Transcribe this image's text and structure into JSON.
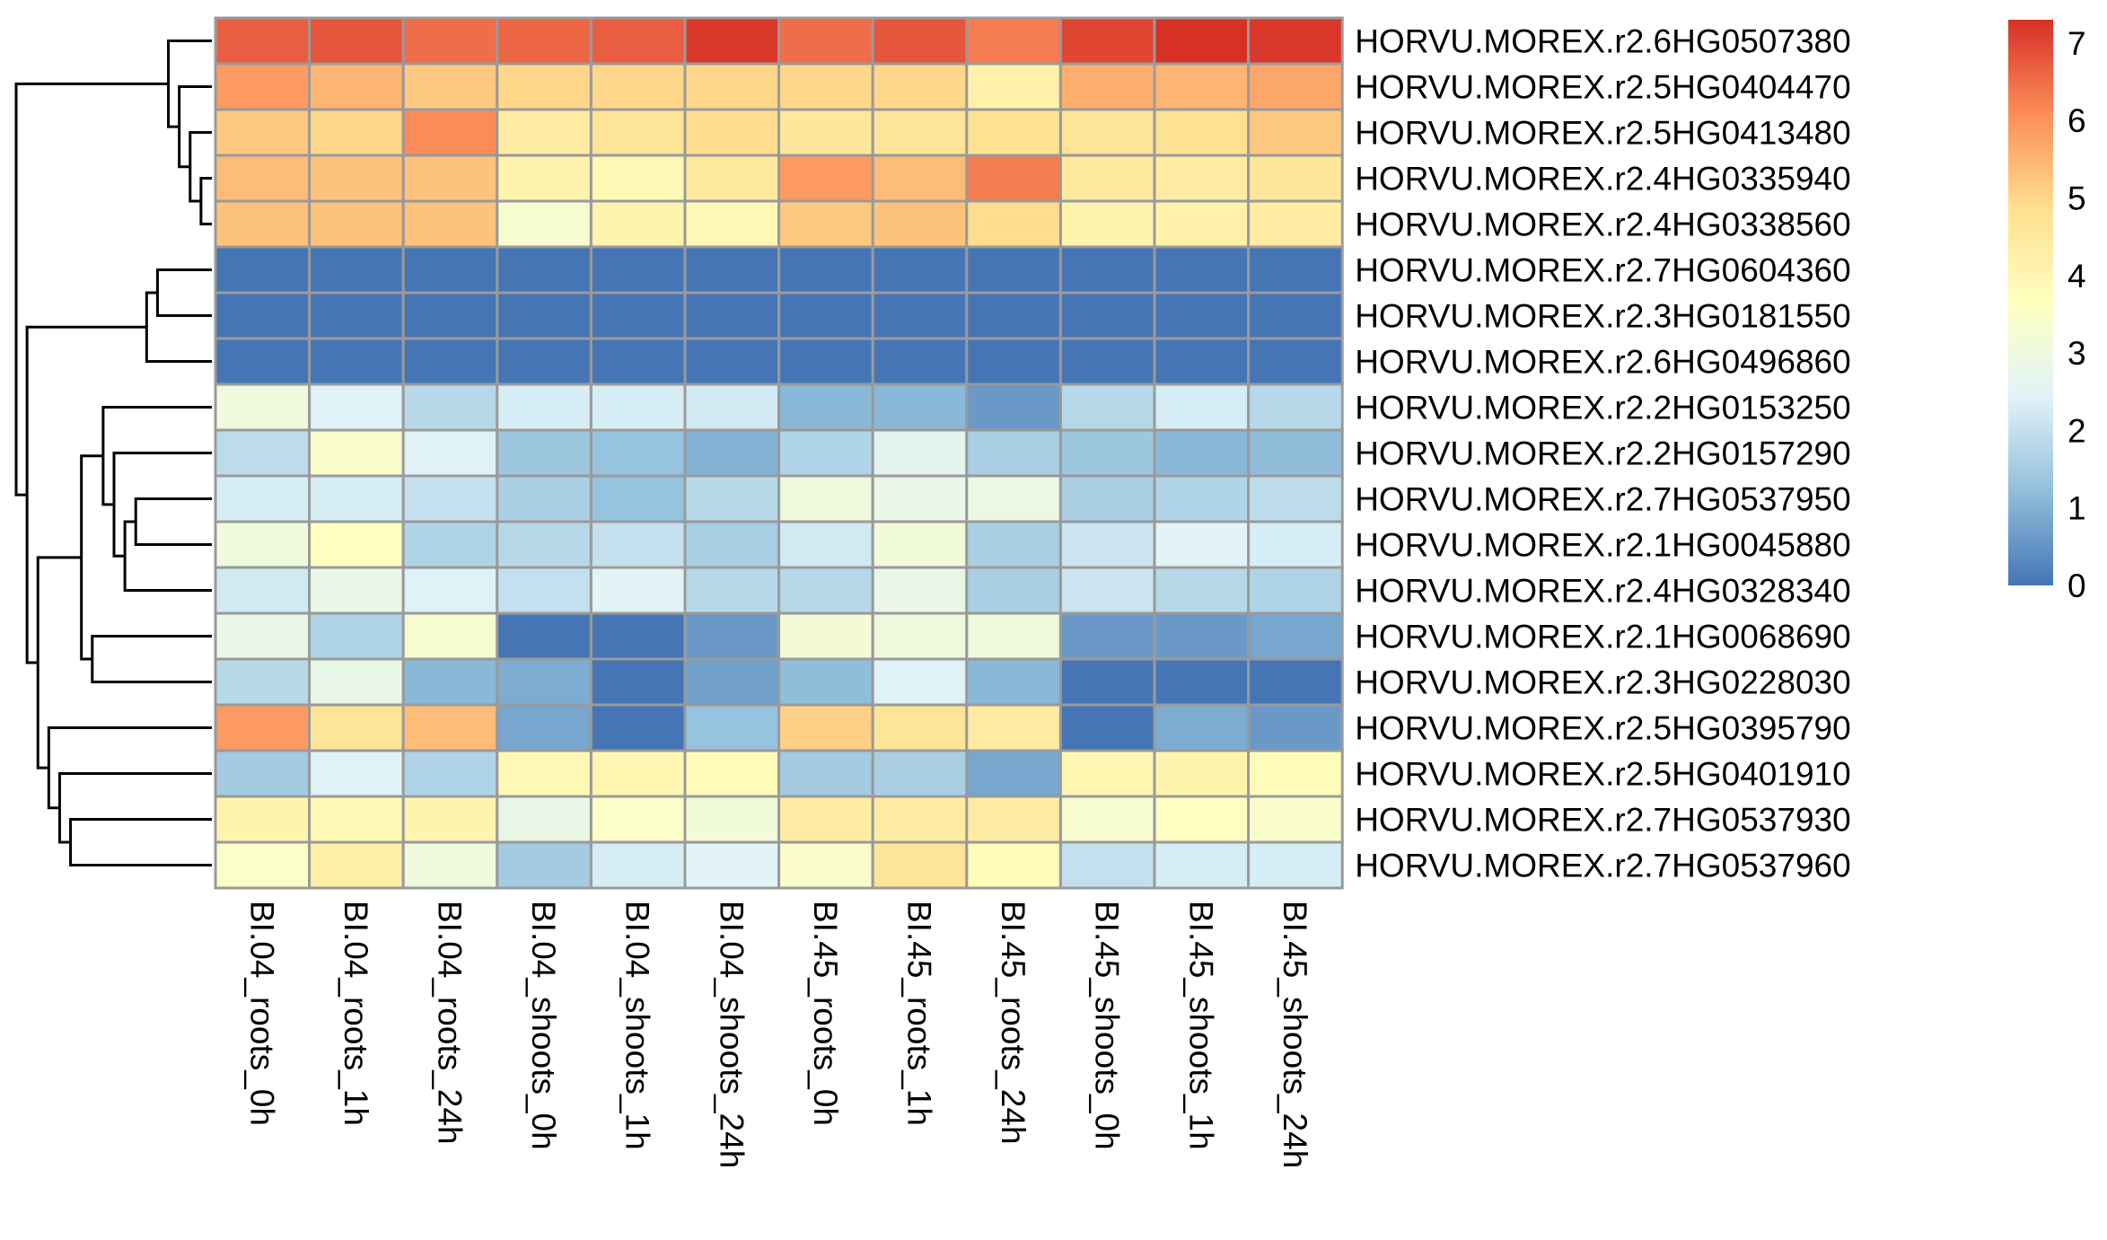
{
  "chart_data": {
    "type": "heatmap",
    "columns": [
      "BI.04_roots_0h",
      "BI.04_roots_1h",
      "BI.04_roots_24h",
      "BI.04_shoots_0h",
      "BI.04_shoots_1h",
      "BI.04_shoots_24h",
      "BI.45_roots_0h",
      "BI.45_roots_1h",
      "BI.45_roots_24h",
      "BI.45_shoots_0h",
      "BI.45_shoots_1h",
      "BI.45_shoots_24h"
    ],
    "rows": [
      "HORVU.MOREX.r2.6HG0507380",
      "HORVU.MOREX.r2.5HG0404470",
      "HORVU.MOREX.r2.5HG0413480",
      "HORVU.MOREX.r2.4HG0335940",
      "HORVU.MOREX.r2.4HG0338560",
      "HORVU.MOREX.r2.7HG0604360",
      "HORVU.MOREX.r2.3HG0181550",
      "HORVU.MOREX.r2.6HG0496860",
      "HORVU.MOREX.r2.2HG0153250",
      "HORVU.MOREX.r2.2HG0157290",
      "HORVU.MOREX.r2.7HG0537950",
      "HORVU.MOREX.r2.1HG0045880",
      "HORVU.MOREX.r2.4HG0328340",
      "HORVU.MOREX.r2.1HG0068690",
      "HORVU.MOREX.r2.3HG0228030",
      "HORVU.MOREX.r2.5HG0395790",
      "HORVU.MOREX.r2.5HG0401910",
      "HORVU.MOREX.r2.7HG0537930",
      "HORVU.MOREX.r2.7HG0537960"
    ],
    "values": [
      [
        6.7,
        6.8,
        6.5,
        6.6,
        6.7,
        7.2,
        6.5,
        6.8,
        6.3,
        7.0,
        7.3,
        7.2
      ],
      [
        5.9,
        5.5,
        5.2,
        5.0,
        5.0,
        5.0,
        5.0,
        5.0,
        4.2,
        5.6,
        5.5,
        5.7
      ],
      [
        5.2,
        5.0,
        6.1,
        4.4,
        4.7,
        4.9,
        4.6,
        4.7,
        4.8,
        4.7,
        4.8,
        5.2
      ],
      [
        5.4,
        5.3,
        5.3,
        4.1,
        3.9,
        4.5,
        5.9,
        5.4,
        6.3,
        4.5,
        4.4,
        4.6
      ],
      [
        5.3,
        5.3,
        5.3,
        3.3,
        4.1,
        3.9,
        5.2,
        5.3,
        4.9,
        4.1,
        4.2,
        4.4
      ],
      [
        0.0,
        0.0,
        0.0,
        0.0,
        0.0,
        0.0,
        0.0,
        0.0,
        0.0,
        0.0,
        0.0,
        0.0
      ],
      [
        0.0,
        0.0,
        0.0,
        0.0,
        0.0,
        0.0,
        0.0,
        0.0,
        0.0,
        0.0,
        0.0,
        0.0
      ],
      [
        0.0,
        0.0,
        0.0,
        0.0,
        0.0,
        0.0,
        0.0,
        0.0,
        0.0,
        0.0,
        0.0,
        0.0
      ],
      [
        3.0,
        2.4,
        1.8,
        2.3,
        2.3,
        2.2,
        1.1,
        1.1,
        0.6,
        1.8,
        2.3,
        1.8
      ],
      [
        1.9,
        3.4,
        2.4,
        1.4,
        1.3,
        1.0,
        1.7,
        2.6,
        1.6,
        1.4,
        1.1,
        1.2
      ],
      [
        2.3,
        2.3,
        2.0,
        1.6,
        1.3,
        1.8,
        3.0,
        2.8,
        2.9,
        1.6,
        1.7,
        1.9
      ],
      [
        3.0,
        3.6,
        1.7,
        1.8,
        2.0,
        1.6,
        2.2,
        3.1,
        1.6,
        2.1,
        2.5,
        2.3
      ],
      [
        2.2,
        2.8,
        2.4,
        2.0,
        2.5,
        1.8,
        1.8,
        2.8,
        1.6,
        2.1,
        1.8,
        1.7
      ],
      [
        2.8,
        1.7,
        3.3,
        0.0,
        0.0,
        0.6,
        3.2,
        3.0,
        3.0,
        0.6,
        0.6,
        0.8
      ],
      [
        1.8,
        2.8,
        1.1,
        0.9,
        0.0,
        0.7,
        1.2,
        2.4,
        1.1,
        0.0,
        0.0,
        0.0
      ],
      [
        5.9,
        4.7,
        5.4,
        0.8,
        0.0,
        1.3,
        5.1,
        4.7,
        4.4,
        0.0,
        0.9,
        0.6
      ],
      [
        1.5,
        2.4,
        1.7,
        3.9,
        4.0,
        3.8,
        1.5,
        1.6,
        0.8,
        4.0,
        4.1,
        3.8
      ],
      [
        4.1,
        3.9,
        4.1,
        2.8,
        3.5,
        3.1,
        4.4,
        4.4,
        4.4,
        3.3,
        3.6,
        3.4
      ],
      [
        3.5,
        4.3,
        3.0,
        1.5,
        2.3,
        2.5,
        3.4,
        4.7,
        3.8,
        2.0,
        2.3,
        2.3
      ]
    ],
    "row_dendrogram_merges": [
      [
        3,
        4
      ],
      [
        2,
        3
      ],
      [
        1,
        2
      ],
      [
        0,
        1
      ],
      [
        5,
        6
      ],
      [
        5,
        7
      ],
      [
        10,
        11
      ],
      [
        10,
        12
      ],
      [
        9,
        10
      ],
      [
        8,
        9
      ],
      [
        13,
        14
      ],
      [
        8,
        13
      ],
      [
        17,
        18
      ],
      [
        16,
        17
      ],
      [
        15,
        16
      ],
      [
        8,
        15
      ],
      [
        5,
        8
      ],
      [
        0,
        5
      ]
    ],
    "color_scale": {
      "min": 0,
      "max": 7.3,
      "stops": [
        "#4575B4",
        "#91BFDB",
        "#E0F3F8",
        "#FFFFBF",
        "#FEE090",
        "#FC8D59",
        "#D73027"
      ]
    },
    "legend": {
      "ticks": [
        "0",
        "1",
        "2",
        "3",
        "4",
        "5",
        "6",
        "7"
      ],
      "placement": "top-right"
    }
  }
}
